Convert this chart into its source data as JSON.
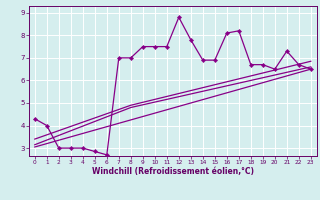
{
  "xlabel": "Windchill (Refroidissement éolien,°C)",
  "x_values": [
    0,
    1,
    2,
    3,
    4,
    5,
    6,
    7,
    8,
    9,
    10,
    11,
    12,
    13,
    14,
    15,
    16,
    17,
    18,
    19,
    20,
    21,
    22,
    23
  ],
  "main_y": [
    4.3,
    4.0,
    3.0,
    3.0,
    3.0,
    2.85,
    2.7,
    7.0,
    7.0,
    7.5,
    7.5,
    7.5,
    8.8,
    7.8,
    6.9,
    6.9,
    8.1,
    8.2,
    6.7,
    6.7,
    6.5,
    7.3,
    6.7,
    6.5
  ],
  "trend1_x": [
    0,
    23
  ],
  "trend1_y": [
    3.05,
    6.5
  ],
  "trend2_x": [
    0,
    8,
    23
  ],
  "trend2_y": [
    3.15,
    4.8,
    6.6
  ],
  "trend3_x": [
    0,
    8,
    23
  ],
  "trend3_y": [
    3.4,
    4.9,
    6.85
  ],
  "line_color": "#880088",
  "bg_color": "#d5eeee",
  "grid_color": "#c0dede",
  "ylim": [
    2.65,
    9.3
  ],
  "yticks": [
    3,
    4,
    5,
    6,
    7,
    8,
    9
  ],
  "xlim": [
    -0.5,
    23.5
  ],
  "xticks": [
    0,
    1,
    2,
    3,
    4,
    5,
    6,
    7,
    8,
    9,
    10,
    11,
    12,
    13,
    14,
    15,
    16,
    17,
    18,
    19,
    20,
    21,
    22,
    23
  ]
}
